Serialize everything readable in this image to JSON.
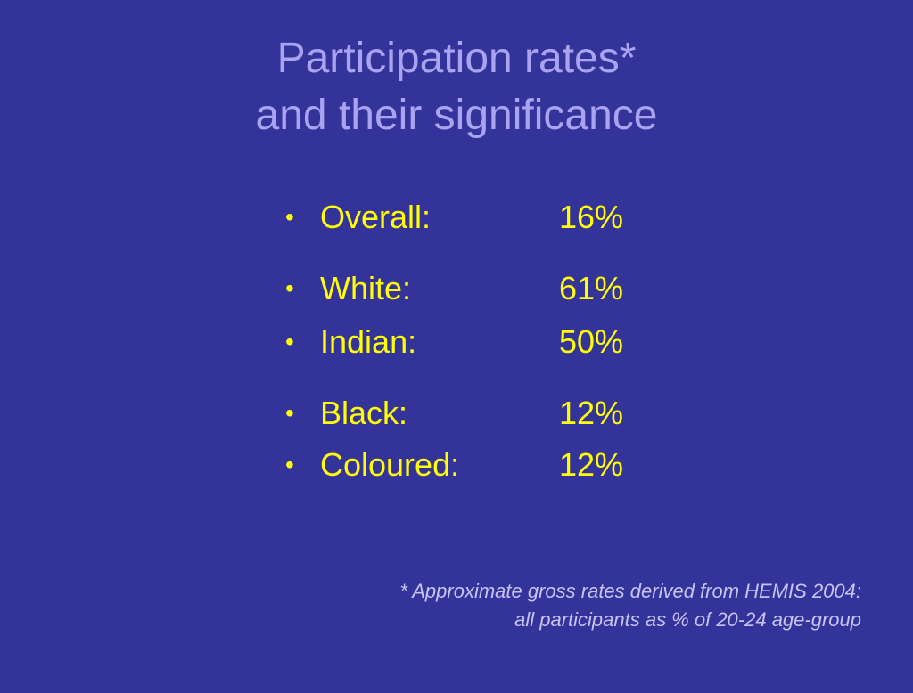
{
  "title": {
    "line1": "Participation rates*",
    "line2": "and their significance"
  },
  "bullets": [
    {
      "label": "Overall:",
      "value": "16%"
    },
    {
      "label": "White:",
      "value": "61%"
    },
    {
      "label": "Indian:",
      "value": "50%"
    },
    {
      "label": "Black:",
      "value": "12%"
    },
    {
      "label": "Coloured:",
      "value": "12%"
    }
  ],
  "bullet_symbol": "•",
  "footnote": {
    "line1": "* Approximate gross rates derived from HEMIS 2004:",
    "line2": "all participants as % of 20-24 age-group"
  },
  "colors": {
    "background": "#333399",
    "title": "#a9a3f2",
    "bullets": "#ffff00",
    "footnote": "#c7c3f5"
  }
}
